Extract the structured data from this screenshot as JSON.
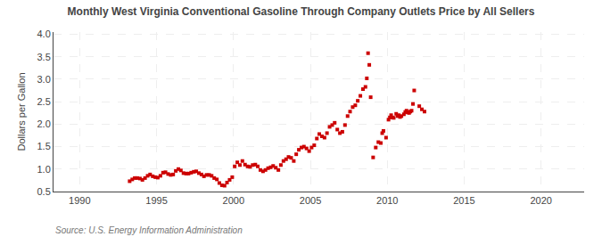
{
  "chart_data": {
    "type": "scatter",
    "title": "Monthly West Virginia Conventional Gasoline Through Company Outlets Price by All Sellers",
    "ylabel": "Dollars per Gallon",
    "annotations": [
      "Source: U.S. Energy Information Administration"
    ],
    "color": "#cc0000",
    "marker": "square",
    "grid": true,
    "xlim": [
      1988.3,
      2022.8
    ],
    "ylim": [
      0.5,
      4.05
    ],
    "xticks": [
      1990,
      1995,
      2000,
      2005,
      2010,
      2015,
      2020
    ],
    "yticks": [
      0.5,
      {
        "value": 1.0,
        "label": "1.0"
      },
      1.5,
      {
        "value": 2.0,
        "label": "2.0"
      },
      2.5,
      {
        "value": 3.0,
        "label": "3.0"
      },
      3.5,
      {
        "value": 4.0,
        "label": "4.0"
      }
    ],
    "x": [
      1993.25,
      1993.42,
      1993.58,
      1993.75,
      1993.92,
      1994.08,
      1994.25,
      1994.42,
      1994.58,
      1994.75,
      1994.92,
      1995.08,
      1995.25,
      1995.42,
      1995.58,
      1995.75,
      1995.92,
      1996.08,
      1996.25,
      1996.42,
      1996.58,
      1996.75,
      1996.92,
      1997.08,
      1997.25,
      1997.42,
      1997.58,
      1997.75,
      1997.92,
      1998.08,
      1998.25,
      1998.42,
      1998.58,
      1998.75,
      1998.92,
      1999.08,
      1999.25,
      1999.42,
      1999.58,
      1999.75,
      1999.92,
      2000.08,
      2000.25,
      2000.42,
      2000.58,
      2000.75,
      2000.92,
      2001.08,
      2001.25,
      2001.42,
      2001.58,
      2001.75,
      2001.92,
      2002.08,
      2002.25,
      2002.42,
      2002.58,
      2002.75,
      2002.92,
      2003.08,
      2003.25,
      2003.42,
      2003.58,
      2003.75,
      2003.92,
      2004.08,
      2004.25,
      2004.42,
      2004.58,
      2004.75,
      2004.92,
      2005.08,
      2005.25,
      2005.42,
      2005.58,
      2005.75,
      2005.92,
      2006.08,
      2006.25,
      2006.42,
      2006.58,
      2006.75,
      2006.92,
      2007.08,
      2007.25,
      2007.42,
      2007.58,
      2007.75,
      2007.92,
      2008.08,
      2008.25,
      2008.42,
      2008.58,
      2008.67,
      2008.75,
      2008.83,
      2008.92,
      2009.08,
      2009.25,
      2009.42,
      2009.58,
      2009.67,
      2009.75,
      2009.92,
      2010.08,
      2010.17,
      2010.25,
      2010.33,
      2010.42,
      2010.58,
      2010.67,
      2010.75,
      2010.83,
      2010.92,
      2011.08,
      2011.17,
      2011.25,
      2011.33,
      2011.42,
      2011.5,
      2011.58,
      2011.67,
      2011.75,
      2012.08,
      2012.25,
      2012.42
    ],
    "values": [
      0.73,
      0.77,
      0.8,
      0.8,
      0.79,
      0.76,
      0.8,
      0.85,
      0.88,
      0.84,
      0.82,
      0.81,
      0.85,
      0.92,
      0.93,
      0.89,
      0.87,
      0.88,
      0.96,
      1.0,
      0.97,
      0.91,
      0.9,
      0.9,
      0.92,
      0.94,
      0.95,
      0.91,
      0.88,
      0.84,
      0.87,
      0.87,
      0.85,
      0.8,
      0.77,
      0.69,
      0.64,
      0.63,
      0.7,
      0.76,
      0.82,
      1.06,
      1.15,
      1.09,
      1.18,
      1.1,
      1.06,
      1.05,
      1.09,
      1.1,
      1.06,
      0.98,
      0.95,
      0.98,
      1.02,
      1.04,
      1.07,
      1.03,
      0.98,
      1.09,
      1.18,
      1.22,
      1.27,
      1.25,
      1.18,
      1.33,
      1.43,
      1.48,
      1.5,
      1.46,
      1.4,
      1.48,
      1.53,
      1.68,
      1.78,
      1.73,
      1.7,
      1.8,
      1.94,
      1.98,
      2.03,
      1.88,
      1.8,
      1.83,
      1.98,
      2.18,
      2.28,
      2.38,
      2.42,
      2.52,
      2.63,
      2.78,
      2.83,
      3.02,
      3.58,
      3.32,
      2.6,
      1.26,
      1.48,
      1.6,
      1.58,
      1.8,
      1.85,
      1.7,
      2.1,
      2.15,
      2.2,
      2.15,
      2.14,
      2.23,
      2.18,
      2.2,
      2.16,
      2.18,
      2.22,
      2.27,
      2.3,
      2.26,
      2.25,
      2.28,
      2.3,
      2.45,
      2.75,
      2.4,
      2.33,
      2.28
    ]
  }
}
